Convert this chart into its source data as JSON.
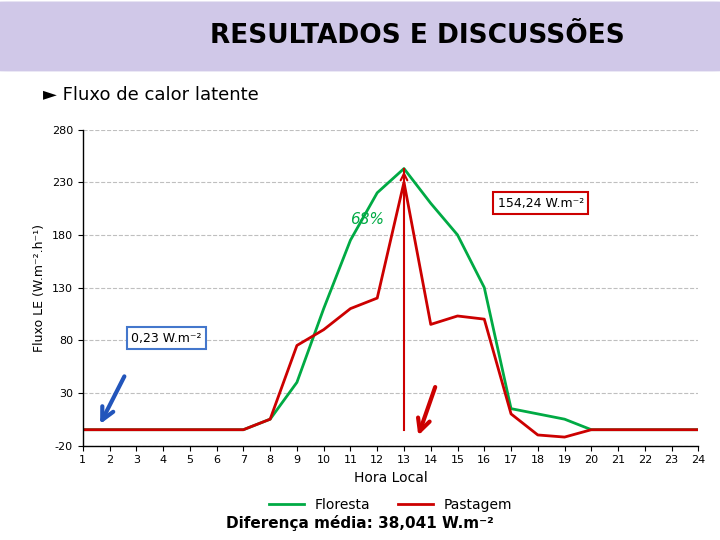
{
  "title": "RESULTADOS E DISCUSSÕES",
  "subtitle": "► Fluxo de calor latente",
  "xlabel": "Hora Local",
  "ylabel": "Fluxo LE (W.m⁻².h⁻¹)",
  "bottom_text": "Diferença média: 38,041 W.m⁻²",
  "hours": [
    1,
    2,
    3,
    4,
    5,
    6,
    7,
    8,
    9,
    10,
    11,
    12,
    13,
    14,
    15,
    16,
    17,
    18,
    19,
    20,
    21,
    22,
    23,
    24
  ],
  "floresta": [
    -5,
    -5,
    -5,
    -5,
    -5,
    -5,
    -5,
    5,
    40,
    110,
    175,
    220,
    243,
    210,
    180,
    130,
    15,
    10,
    5,
    -5,
    -5,
    -5,
    -5,
    -5
  ],
  "pastagem": [
    -5,
    -5,
    -5,
    -5,
    -5,
    -5,
    -5,
    5,
    75,
    90,
    110,
    120,
    230,
    95,
    103,
    100,
    10,
    -10,
    -12,
    -5,
    -5,
    -5,
    -5,
    -5
  ],
  "floresta_color": "#00aa44",
  "pastagem_color": "#cc0000",
  "ylim": [
    -20,
    280
  ],
  "yticks": [
    -20,
    30,
    80,
    130,
    180,
    230,
    280
  ],
  "title_bg": "#d0c8e8",
  "title_color": "#000000",
  "annotation_68": "68%",
  "annotation_154": "154,24 W.m⁻²",
  "annotation_023": "0,23 W.m⁻²",
  "legend_floresta": "Floresta",
  "legend_pastagem": "Pastagem",
  "blue_arrow_color": "#2255bb",
  "red_arrow_color": "#cc0000"
}
